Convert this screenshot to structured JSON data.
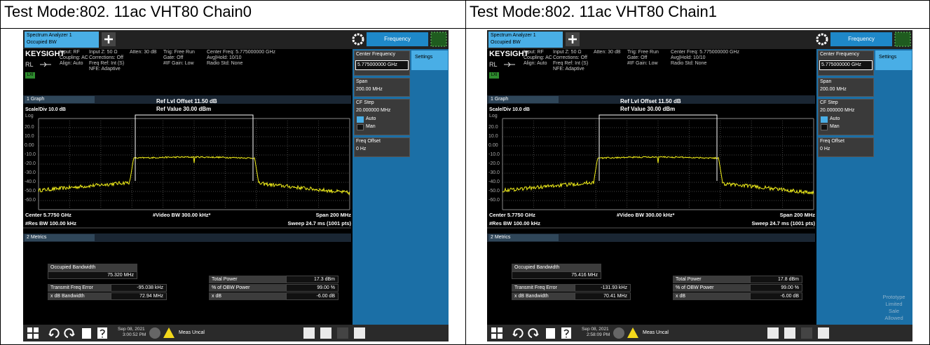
{
  "table": {
    "header": [
      "Test Mode:802. 11ac VHT80 Chain0",
      "Test Mode:802. 11ac VHT80 Chain1"
    ],
    "screens": [
      {
        "tab_title": "Spectrum Analyzer 1",
        "tab_subtitle": "Occupied BW",
        "menu_button": "Frequency",
        "brand": "KEYSIGHT",
        "rl": "RL",
        "lxi": "LXI",
        "info_columns": [
          [
            "Input: RF",
            "Coupling: AC",
            "Align: Auto"
          ],
          [
            "Input Z: 50 Ω",
            "Corrections: Off",
            "Freq Ref: Int (S)",
            "NFE: Adaptive"
          ],
          [
            "Atten: 30 dB"
          ],
          [
            "Trig: Free Run",
            "Gate: Off",
            "#IF Gain: Low"
          ],
          [
            "Center Freq: 5.775000000 GHz",
            "Avg|Hold: 10/10",
            "Radio Std: None"
          ]
        ],
        "graph_tab": "1 Graph",
        "ref_offset": "Ref Lvl Offset 11.50 dB",
        "ref_value": "Ref Value 30.00 dBm",
        "scale": "Scale/Div 10.0 dB",
        "log": "Log",
        "y_labels": [
          "20.0",
          "10.0",
          "0.00",
          "-10.0",
          "-20.0",
          "-30.0",
          "-40.0",
          "-50.0",
          "-60.0"
        ],
        "center": "Center 5.7750 GHz",
        "video_bw": "#Video BW 300.00 kHz*",
        "span": "Span 200 MHz",
        "res_bw": "#Res BW 100.00 kHz",
        "sweep": "Sweep 24.7 ms (1001 pts)",
        "metrics_tab": "2 Metrics",
        "occupied_bw_label": "Occupied Bandwidth",
        "occupied_bw": "75.320 MHz",
        "rows": [
          [
            "Transmit Freq Error",
            "-95.038 kHz"
          ],
          [
            "x dB Bandwidth",
            "72.94 MHz"
          ]
        ],
        "right_rows": [
          [
            "Total Power",
            "17.3 dBm"
          ],
          [
            "% of OBW Power",
            "99.00 %"
          ],
          [
            "x dB",
            "-6.00 dB"
          ]
        ],
        "side": {
          "center_freq_label": "Center Frequency",
          "center_freq": "5.775000000 GHz",
          "span_label": "Span",
          "span": "200.00 MHz",
          "cf_step_label": "CF Step",
          "cf_step": "20.000000 MHz",
          "auto": "Auto",
          "man": "Man",
          "freq_offset_label": "Freq Offset",
          "freq_offset": "0 Hz",
          "settings": "Settings"
        },
        "date": "Sep 08, 2021",
        "time": "3:00:52 PM",
        "status": "Meas Uncal"
      },
      {
        "tab_title": "Spectrum Analyzer 1",
        "tab_subtitle": "Occupied BW",
        "menu_button": "Frequency",
        "brand": "KEYSIGHT",
        "rl": "RL",
        "lxi": "LXI",
        "info_columns": [
          [
            "Input: RF",
            "Coupling: AC",
            "Align: Auto"
          ],
          [
            "Input Z: 50 Ω",
            "Corrections: Off",
            "Freq Ref: Int (S)",
            "NFE: Adaptive"
          ],
          [
            "Atten: 30 dB"
          ],
          [
            "Trig: Free Run",
            "Gate: Off",
            "#IF Gain: Low"
          ],
          [
            "Center Freq: 5.775000000 GHz",
            "Avg|Hold: 10/10",
            "Radio Std: None"
          ]
        ],
        "graph_tab": "1 Graph",
        "ref_offset": "Ref Lvl Offset 11.50 dB",
        "ref_value": "Ref Value 30.00 dBm",
        "scale": "Scale/Div 10.0 dB",
        "log": "Log",
        "y_labels": [
          "20.0",
          "10.0",
          "0.00",
          "-10.0",
          "-20.0",
          "-30.0",
          "-40.0",
          "-50.0",
          "-60.0"
        ],
        "center": "Center 5.7750 GHz",
        "video_bw": "#Video BW 300.00 kHz*",
        "span": "Span 200 MHz",
        "res_bw": "#Res BW 100.00 kHz",
        "sweep": "Sweep 24.7 ms (1001 pts)",
        "metrics_tab": "2 Metrics",
        "occupied_bw_label": "Occupied Bandwidth",
        "occupied_bw": "75.416 MHz",
        "rows": [
          [
            "Transmit Freq Error",
            "-131.93 kHz"
          ],
          [
            "x dB Bandwidth",
            "70.41 MHz"
          ]
        ],
        "right_rows": [
          [
            "Total Power",
            "17.8 dBm"
          ],
          [
            "% of OBW Power",
            "99.00 %"
          ],
          [
            "x dB",
            "-6.00 dB"
          ]
        ],
        "side": {
          "center_freq_label": "Center Frequency",
          "center_freq": "5.775000000 GHz",
          "span_label": "Span",
          "span": "200.00 MHz",
          "cf_step_label": "CF Step",
          "cf_step": "20.000000 MHz",
          "auto": "Auto",
          "man": "Man",
          "freq_offset_label": "Freq Offset",
          "freq_offset": "0 Hz",
          "settings": "Settings"
        },
        "watermark": [
          "Prototype",
          "Limited",
          "Sale",
          "Allowed"
        ],
        "date": "Sep 08, 2021",
        "time": "2:58:09 PM",
        "status": "Meas Uncal"
      }
    ]
  }
}
